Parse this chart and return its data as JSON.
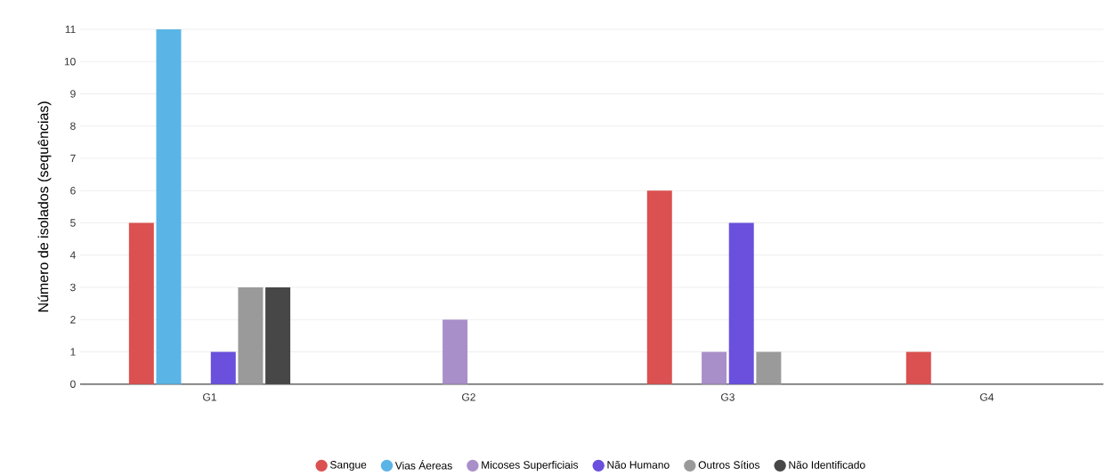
{
  "chart_data": {
    "type": "bar",
    "ylabel": "Número de isolados (sequências)",
    "categories": [
      "G1",
      "G2",
      "G3",
      "G4"
    ],
    "ylim": [
      0,
      11
    ],
    "yticks": [
      0,
      1,
      2,
      3,
      4,
      5,
      6,
      7,
      8,
      9,
      10,
      11
    ],
    "grid": "y",
    "legend": "bottom",
    "series": [
      {
        "name": "Sangue",
        "color": "#db5050",
        "values": [
          5,
          0,
          6,
          1
        ]
      },
      {
        "name": "Vias Áereas",
        "color": "#5ab4e5",
        "values": [
          11,
          0,
          0,
          0
        ]
      },
      {
        "name": "Micoses Superficiais",
        "color": "#a98fc9",
        "values": [
          0,
          2,
          1,
          0
        ]
      },
      {
        "name": "Não Humano",
        "color": "#6a50dc",
        "values": [
          1,
          0,
          5,
          0
        ]
      },
      {
        "name": "Outros Sítios",
        "color": "#9a9a9a",
        "values": [
          3,
          0,
          1,
          0
        ]
      },
      {
        "name": "Não Identificado",
        "color": "#474747",
        "values": [
          3,
          0,
          0,
          0
        ]
      }
    ]
  }
}
